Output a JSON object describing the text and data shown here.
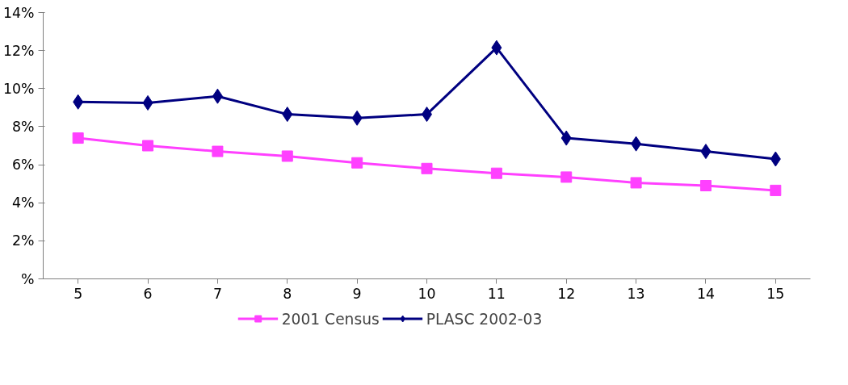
{
  "chart_data": {
    "type": "line",
    "categories": [
      "5",
      "6",
      "7",
      "8",
      "9",
      "10",
      "11",
      "12",
      "13",
      "14",
      "15"
    ],
    "series": [
      {
        "name": "2001 Census",
        "color": "#ff40ff",
        "marker": "square",
        "values": [
          7.4,
          7.0,
          6.7,
          6.45,
          6.1,
          5.8,
          5.55,
          5.35,
          5.05,
          4.9,
          4.65
        ]
      },
      {
        "name": "PLASC 2002-03",
        "color": "#000080",
        "marker": "diamond",
        "values": [
          9.3,
          9.25,
          9.6,
          8.65,
          8.45,
          8.65,
          12.15,
          7.4,
          7.1,
          6.7,
          6.3
        ]
      }
    ],
    "ylim": [
      0,
      14
    ],
    "yticks": [
      {
        "value": 0,
        "label": "%"
      },
      {
        "value": 2,
        "label": "2%"
      },
      {
        "value": 4,
        "label": "4%"
      },
      {
        "value": 6,
        "label": "6%"
      },
      {
        "value": 8,
        "label": "8%"
      },
      {
        "value": 10,
        "label": "10%"
      },
      {
        "value": 12,
        "label": "12%"
      },
      {
        "value": 14,
        "label": "14%"
      }
    ],
    "grid": false,
    "legend": "bottom",
    "line_style": "solid"
  }
}
